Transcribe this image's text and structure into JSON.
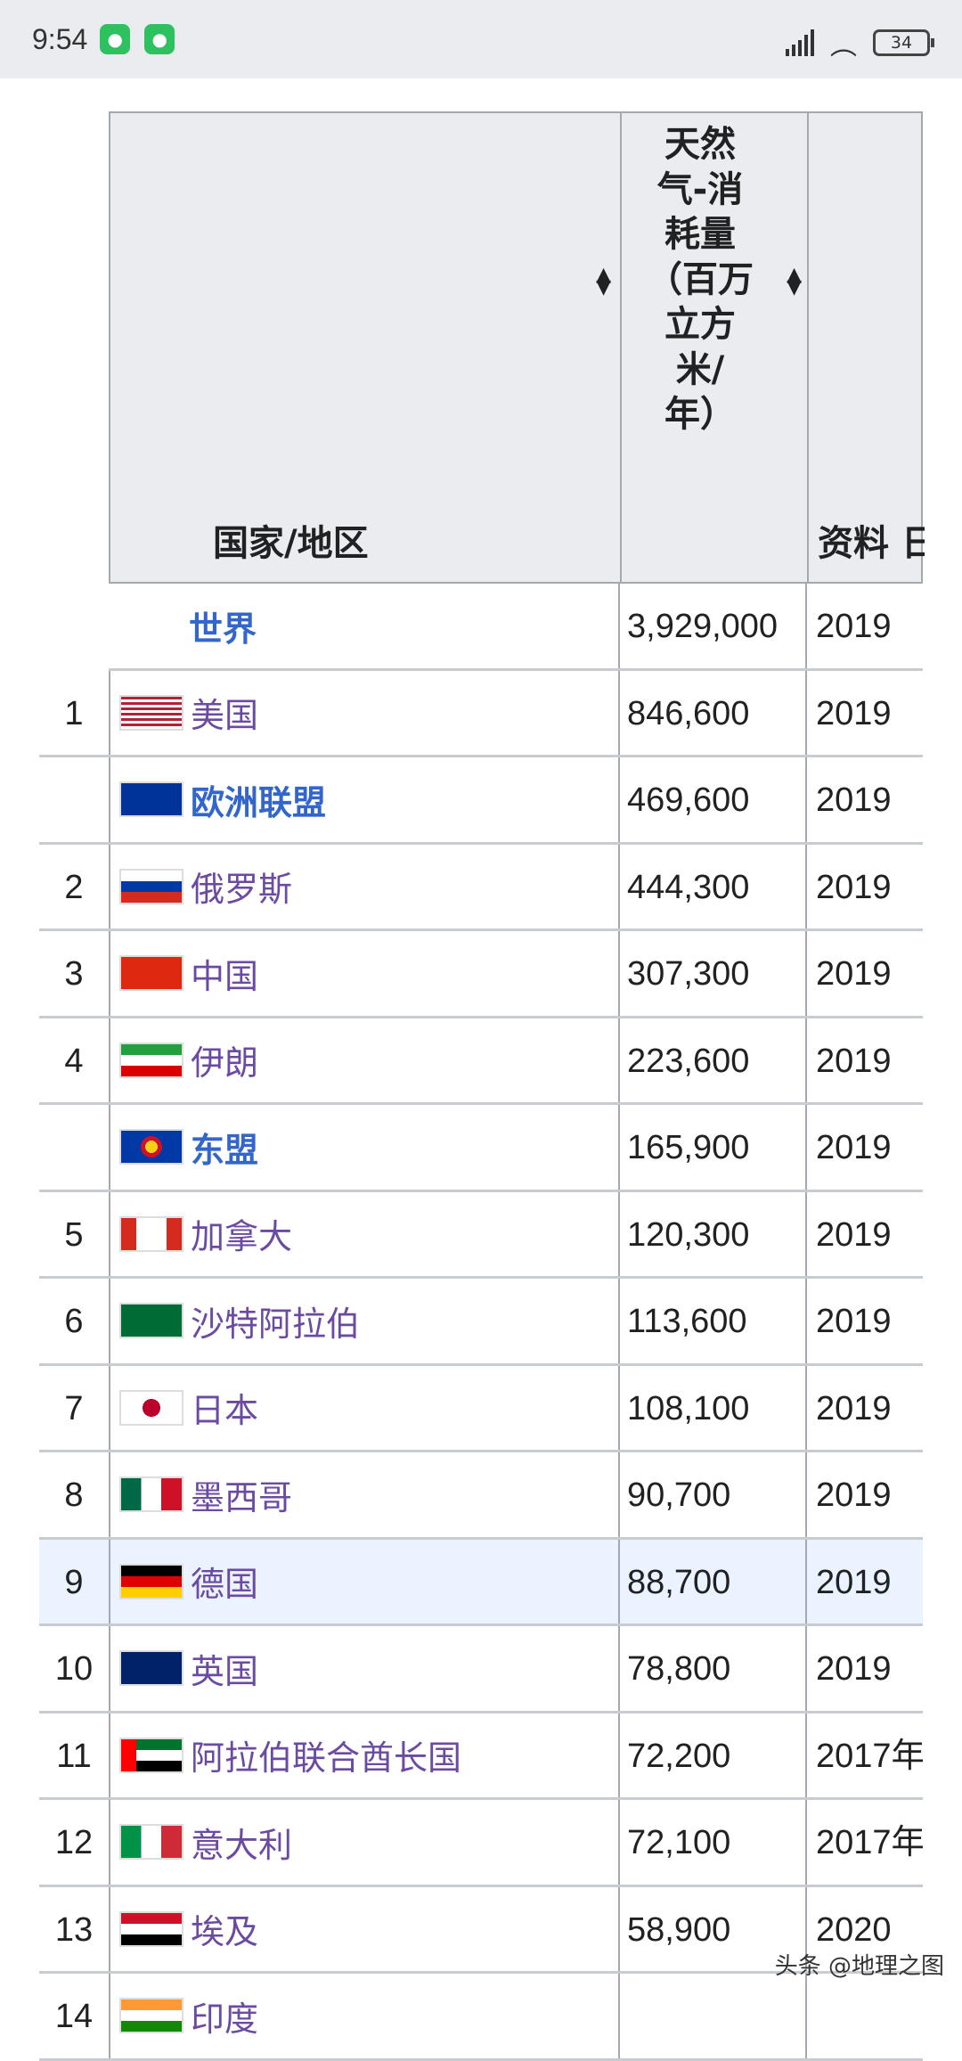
{
  "status": {
    "time": "9:54",
    "battery": "34",
    "app_icons": [
      "wechat-icon",
      "wechat-icon"
    ]
  },
  "table": {
    "headers": {
      "name": "国家/地区",
      "value": "天然气-消耗量（百万立方米/年）",
      "value_lines": [
        "天然",
        "气-消",
        "耗量",
        "（百万",
        "立方",
        "米/",
        "年）"
      ],
      "source": "资料 日"
    },
    "rows": [
      {
        "rank": "",
        "name": "世界",
        "value": "3,929,000",
        "year": "2019",
        "flag": "none",
        "bold": true
      },
      {
        "rank": "1",
        "name": "美国",
        "value": "846,600",
        "year": "2019",
        "flag": "us"
      },
      {
        "rank": "",
        "name": "欧洲联盟",
        "value": "469,600",
        "year": "2019",
        "flag": "eu",
        "bold": true
      },
      {
        "rank": "2",
        "name": "俄罗斯",
        "value": "444,300",
        "year": "2019",
        "flag": "ru"
      },
      {
        "rank": "3",
        "name": "中国",
        "value": "307,300",
        "year": "2019",
        "flag": "cn"
      },
      {
        "rank": "4",
        "name": "伊朗",
        "value": "223,600",
        "year": "2019",
        "flag": "ir"
      },
      {
        "rank": "",
        "name": "东盟",
        "value": "165,900",
        "year": "2019",
        "flag": "asean",
        "bold": true
      },
      {
        "rank": "5",
        "name": "加拿大",
        "value": "120,300",
        "year": "2019",
        "flag": "ca"
      },
      {
        "rank": "6",
        "name": "沙特阿拉伯",
        "value": "113,600",
        "year": "2019",
        "flag": "sa"
      },
      {
        "rank": "7",
        "name": "日本",
        "value": "108,100",
        "year": "2019",
        "flag": "jp"
      },
      {
        "rank": "8",
        "name": "墨西哥",
        "value": "90,700",
        "year": "2019",
        "flag": "mx"
      },
      {
        "rank": "9",
        "name": "德国",
        "value": "88,700",
        "year": "2019",
        "flag": "de",
        "highlight": true
      },
      {
        "rank": "10",
        "name": "英国",
        "value": "78,800",
        "year": "2019",
        "flag": "gb"
      },
      {
        "rank": "11",
        "name": "阿拉伯联合酋长国",
        "value": "72,200",
        "year": "2017年",
        "flag": "ae"
      },
      {
        "rank": "12",
        "name": "意大利",
        "value": "72,100",
        "year": "2017年",
        "flag": "it"
      },
      {
        "rank": "13",
        "name": "埃及",
        "value": "58,900",
        "year": "2020",
        "flag": "eg"
      },
      {
        "rank": "14",
        "name": "印度",
        "value": "",
        "year": "",
        "flag": "in"
      }
    ]
  },
  "watermark": "头条 @地理之图",
  "colors": {
    "visited_link": "#6b4ba1",
    "link": "#3366cc",
    "header_bg": "#eaecf0",
    "highlight": "#eaf3ff"
  }
}
